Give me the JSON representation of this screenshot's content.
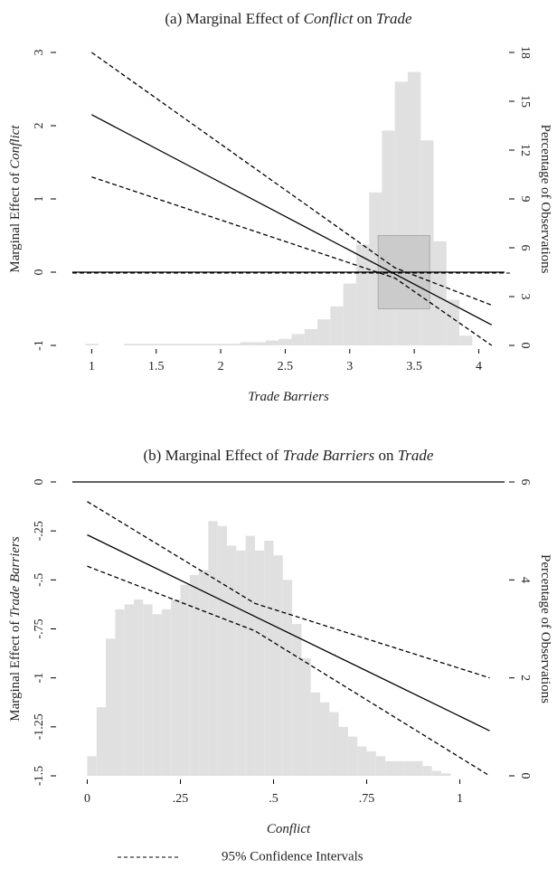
{
  "chart_data": [
    {
      "type": "histogram",
      "title": [
        "(a) Marginal Effect of ",
        "Conflict",
        " on ",
        "Trade"
      ],
      "title_italic": [
        false,
        true,
        false,
        true
      ],
      "xlabel": [
        "Trade Barriers"
      ],
      "xlabel_italic": [
        true
      ],
      "ylabel": [
        "Marginal Effect of ",
        "Conflict"
      ],
      "ylabel_italic": [
        false,
        true
      ],
      "y2label": [
        "Percentage of Observations"
      ],
      "y2label_italic": [
        false
      ],
      "xlim": [
        0.85,
        4.2
      ],
      "xticks": [
        1,
        1.5,
        2,
        2.5,
        3,
        3.5,
        4
      ],
      "ylim": [
        -1,
        3
      ],
      "yticks": [
        -1,
        0,
        1,
        2,
        3
      ],
      "y2lim": [
        0,
        18
      ],
      "y2ticks": [
        0,
        3,
        6,
        9,
        12,
        15,
        18
      ],
      "hist_color": "#e0e0e0",
      "bins": [
        0.95,
        1.05,
        1.15,
        1.25,
        1.35,
        1.45,
        1.55,
        1.65,
        1.75,
        1.85,
        1.95,
        2.05,
        2.15,
        2.25,
        2.35,
        2.45,
        2.55,
        2.65,
        2.75,
        2.85,
        2.95,
        3.05,
        3.15,
        3.25,
        3.35,
        3.45,
        3.55,
        3.65,
        3.75,
        3.85,
        3.95
      ],
      "counts": [
        0.1,
        0,
        0,
        0.1,
        0.1,
        0.1,
        0.1,
        0.1,
        0.1,
        0.1,
        0.1,
        0.1,
        0.2,
        0.2,
        0.3,
        0.4,
        0.7,
        1.0,
        1.6,
        2.4,
        3.8,
        6.2,
        9.4,
        13.2,
        16.2,
        16.8,
        12.6,
        6.4,
        2.8,
        0.6
      ],
      "hline": 0,
      "hline_dashed_too": true,
      "shaded_box": {
        "x": [
          3.22,
          3.62
        ],
        "y": [
          -0.5,
          0.5
        ],
        "color": "#bdbdbd"
      },
      "series": [
        {
          "color": "#000000",
          "dashed": false,
          "x": [
            1,
            4.1
          ],
          "values": [
            2.15,
            -0.72
          ]
        },
        {
          "color": "#000000",
          "dashed": true,
          "x": [
            1,
            3.35,
            4.1
          ],
          "values": [
            3.0,
            0.06,
            -0.45
          ]
        },
        {
          "color": "#000000",
          "dashed": true,
          "x": [
            1,
            3.35,
            4.1
          ],
          "values": [
            1.3,
            -0.08,
            -1.0
          ]
        }
      ]
    },
    {
      "type": "histogram",
      "title": [
        "(b) Marginal Effect of ",
        "Trade Barriers",
        " on ",
        "Trade"
      ],
      "title_italic": [
        false,
        true,
        false,
        true
      ],
      "xlabel": [
        "Conflict"
      ],
      "xlabel_italic": [
        true
      ],
      "ylabel": [
        "Marginal Effect of ",
        "Trade Barriers"
      ],
      "ylabel_italic": [
        false,
        true
      ],
      "y2label": [
        "Percentage of Observations"
      ],
      "y2label_italic": [
        false
      ],
      "xlim": [
        -0.04,
        1.12
      ],
      "xticks": [
        0,
        {
          "value": 0.25,
          "label": ".25"
        },
        {
          "value": 0.5,
          "label": ".5"
        },
        {
          "value": 0.75,
          "label": ".75"
        },
        1
      ],
      "ylim": [
        -1.5,
        0
      ],
      "yticks": [
        {
          "value": -1.5,
          "label": "-1.5"
        },
        {
          "value": -1.25,
          "label": "-1.25"
        },
        -1,
        {
          "value": -0.75,
          "label": "-.75"
        },
        {
          "value": -0.5,
          "label": "-.5"
        },
        {
          "value": -0.25,
          "label": "-.25"
        },
        0
      ],
      "y2lim": [
        0,
        6
      ],
      "y2ticks": [
        0,
        2,
        4,
        6
      ],
      "hist_color": "#e0e0e0",
      "bins": [
        0,
        0.025,
        0.05,
        0.075,
        0.1,
        0.125,
        0.15,
        0.175,
        0.2,
        0.225,
        0.25,
        0.275,
        0.3,
        0.325,
        0.35,
        0.375,
        0.4,
        0.425,
        0.45,
        0.475,
        0.5,
        0.525,
        0.55,
        0.575,
        0.6,
        0.625,
        0.65,
        0.675,
        0.7,
        0.725,
        0.75,
        0.775,
        0.8,
        0.825,
        0.85,
        0.875,
        0.9,
        0.925,
        0.95,
        0.975,
        1.0
      ],
      "counts": [
        0.4,
        1.4,
        2.8,
        3.4,
        3.5,
        3.6,
        3.5,
        3.3,
        3.4,
        3.6,
        3.9,
        4.1,
        4.2,
        5.2,
        5.1,
        4.7,
        4.6,
        4.9,
        4.6,
        4.8,
        4.5,
        4.0,
        3.1,
        2.4,
        1.7,
        1.5,
        1.3,
        1.0,
        0.8,
        0.6,
        0.5,
        0.4,
        0.3,
        0.3,
        0.3,
        0.3,
        0.2,
        0.1,
        0.05,
        0
      ],
      "hline": 0,
      "hline_dashed_too": false,
      "series": [
        {
          "color": "#000000",
          "dashed": false,
          "x": [
            0,
            1.08
          ],
          "values": [
            -0.27,
            -1.27
          ]
        },
        {
          "color": "#000000",
          "dashed": true,
          "x": [
            0,
            0.45,
            1.08
          ],
          "values": [
            -0.1,
            -0.62,
            -1.0
          ]
        },
        {
          "color": "#000000",
          "dashed": true,
          "x": [
            0,
            0.45,
            1.08
          ],
          "values": [
            -0.43,
            -0.76,
            -1.5
          ]
        }
      ]
    }
  ],
  "legend": {
    "label": "95% Confidence Intervals",
    "dashed": true
  }
}
